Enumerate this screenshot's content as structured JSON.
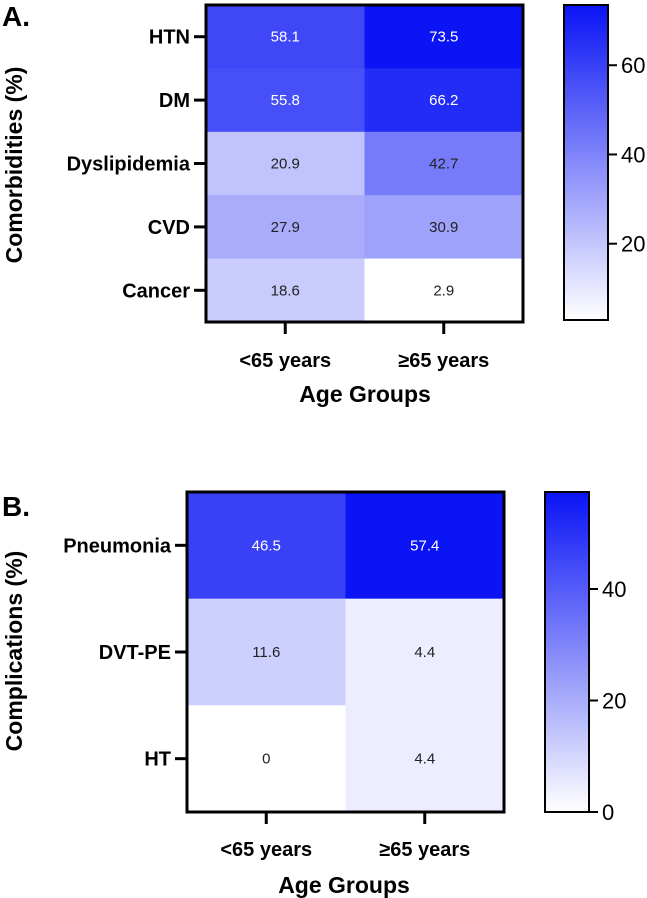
{
  "chart_data": [
    {
      "type": "heatmap",
      "panel_label": "A.",
      "ylabel": "Comorbidities (%)",
      "xlabel": "Age Groups",
      "x_categories": [
        "<65 years",
        "≥65 years"
      ],
      "y_categories": [
        "HTN",
        "DM",
        "Dyslipidemia",
        "CVD",
        "Cancer"
      ],
      "values": [
        [
          58.1,
          73.5
        ],
        [
          55.8,
          66.2
        ],
        [
          20.9,
          42.7
        ],
        [
          27.9,
          30.9
        ],
        [
          18.6,
          2.9
        ]
      ],
      "value_labels": [
        [
          "58.1",
          "73.5"
        ],
        [
          "55.8",
          "66.2"
        ],
        [
          "20.9",
          "42.7"
        ],
        [
          "27.9",
          "30.9"
        ],
        [
          "18.6",
          "2.9"
        ]
      ],
      "colorscale": {
        "min": 2.9,
        "max": 73.5,
        "low_color": "#ffffff",
        "high_color": "#0a14f5"
      },
      "colorbar": {
        "ticks": [
          20,
          40,
          60
        ],
        "tick_labels": [
          "20",
          "40",
          "60"
        ]
      }
    },
    {
      "type": "heatmap",
      "panel_label": "B.",
      "ylabel": "Complications (%)",
      "xlabel": "Age Groups",
      "x_categories": [
        "<65 years",
        "≥65 years"
      ],
      "y_categories": [
        "Pneumonia",
        "DVT-PE",
        "HT"
      ],
      "values": [
        [
          46.5,
          57.4
        ],
        [
          11.6,
          4.4
        ],
        [
          0,
          4.4
        ]
      ],
      "value_labels": [
        [
          "46.5",
          "57.4"
        ],
        [
          "11.6",
          "4.4"
        ],
        [
          "0",
          "4.4"
        ]
      ],
      "colorscale": {
        "min": 0,
        "max": 57.4,
        "low_color": "#ffffff",
        "high_color": "#0a14f5"
      },
      "colorbar": {
        "ticks": [
          0,
          20,
          40
        ],
        "tick_labels": [
          "0",
          "20",
          "40"
        ]
      }
    }
  ]
}
